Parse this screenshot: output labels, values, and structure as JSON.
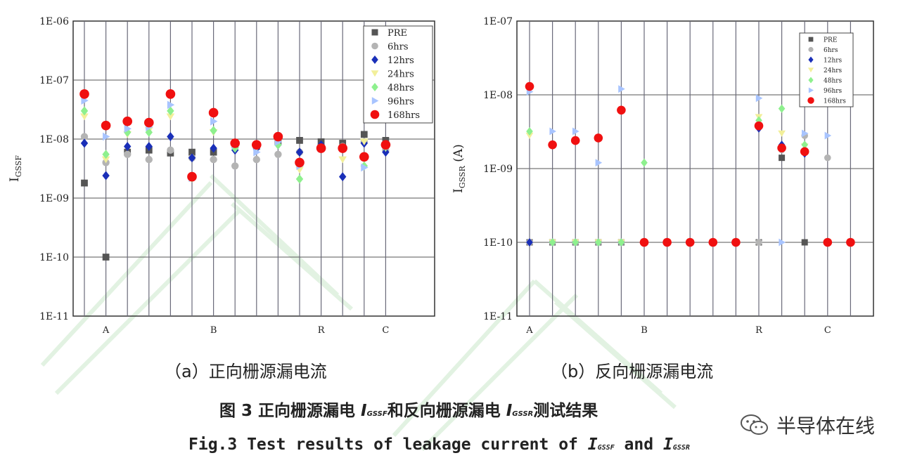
{
  "figure": {
    "caption_a": "（a）正向栅源漏电流",
    "caption_b": "（b）反向栅源漏电流",
    "title_cn_pre": "图 3  正向栅源漏电 ",
    "title_cn_sym1": "I",
    "title_cn_sub1": "GSSF",
    "title_cn_mid": "和反向栅源漏电 ",
    "title_cn_sym2": "I",
    "title_cn_sub2": "GSSR",
    "title_cn_post": "测试结果",
    "title_en_pre": "Fig.3 Test results of leakage current of ",
    "title_en_sym1": "I",
    "title_en_sub1": "GSSF",
    "title_en_mid": " and ",
    "title_en_sym2": "I",
    "title_en_sub2": "GSSR",
    "watermark": "半导体在线"
  },
  "colors": {
    "PRE": "#555555",
    "6hrs": "#b4b4b4",
    "12hrs": "#1a2fb8",
    "24hrs": "#f2ef9a",
    "48hrs": "#8ef08e",
    "96hrs": "#a8c4ff",
    "168hrs": "#f01010"
  },
  "chart_data": [
    {
      "type": "scatter",
      "title": "",
      "ylabel": "IGSSF",
      "ylabel_main": "I",
      "ylabel_sub": "GSSF",
      "yscale": "log",
      "ylim": [
        1e-11,
        1e-06
      ],
      "ytick_labels": [
        "1E-06",
        "1E-07",
        "1E-08",
        "1E-09",
        "1E-10",
        "1E-11"
      ],
      "x_category_labels": [
        {
          "label": "A",
          "at": 1
        },
        {
          "label": "B",
          "at": 6
        },
        {
          "label": "R",
          "at": 11
        },
        {
          "label": "C",
          "at": 14
        }
      ],
      "x_count": 15,
      "legend_position": "top-right",
      "series": [
        {
          "name": "PRE",
          "marker": "square",
          "values": [
            1.8e-09,
            1e-10,
            6e-09,
            6.5e-09,
            5.8e-09,
            6e-09,
            6e-09,
            8e-09,
            7.5e-09,
            9e-09,
            9.5e-09,
            9e-09,
            8.5e-09,
            1.2e-08,
            9.5e-09
          ]
        },
        {
          "name": "6hrs",
          "marker": "circle",
          "values": [
            1.1e-08,
            4e-09,
            5.5e-09,
            4.5e-09,
            6.5e-09,
            4.8e-09,
            4.5e-09,
            3.5e-09,
            4.5e-09,
            5.5e-09,
            6e-09,
            7e-09,
            7.5e-09,
            9e-09,
            6.5e-09
          ]
        },
        {
          "name": "12hrs",
          "marker": "diamond",
          "values": [
            8.5e-09,
            2.4e-09,
            7.5e-09,
            7.5e-09,
            1.1e-08,
            4.8e-09,
            7e-09,
            6.5e-09,
            7e-09,
            8e-09,
            6e-09,
            8e-09,
            2.3e-09,
            8.5e-09,
            6e-09
          ]
        },
        {
          "name": "24hrs",
          "marker": "triangle-down",
          "values": [
            2.4e-08,
            4.5e-09,
            1.2e-08,
            1.4e-08,
            2.4e-08,
            2.2e-09,
            1.3e-08,
            7e-09,
            7e-09,
            9e-09,
            3e-09,
            7e-09,
            4.5e-09,
            9e-09,
            7e-09
          ]
        },
        {
          "name": "48hrs",
          "marker": "diamond",
          "values": [
            3e-08,
            5.5e-09,
            1.3e-08,
            1.3e-08,
            3e-08,
            2.2e-09,
            1.4e-08,
            7e-09,
            8e-09,
            8e-09,
            2.1e-09,
            7e-09,
            7e-09,
            3.5e-09,
            7.5e-09
          ]
        },
        {
          "name": "96hrs",
          "marker": "triangle-right",
          "values": [
            4.5e-08,
            1.1e-08,
            1.5e-08,
            1.6e-08,
            3.8e-08,
            2.2e-09,
            2e-08,
            8e-09,
            6e-09,
            9e-09,
            3.5e-09,
            7e-09,
            7e-09,
            3.3e-09,
            8e-09
          ]
        },
        {
          "name": "168hrs",
          "marker": "circle-large",
          "values": [
            5.8e-08,
            1.7e-08,
            2e-08,
            1.9e-08,
            5.8e-08,
            2.3e-09,
            2.8e-08,
            8.5e-09,
            8e-09,
            1.1e-08,
            4e-09,
            7e-09,
            7e-09,
            5e-09,
            8e-09
          ]
        }
      ]
    },
    {
      "type": "scatter",
      "title": "",
      "ylabel": "IGSSR (A)",
      "ylabel_main": "I",
      "ylabel_sub": "GSSR",
      "ylabel_unit": " (A)",
      "yscale": "log",
      "ylim": [
        1e-11,
        1e-07
      ],
      "ytick_labels": [
        "1E-07",
        "1E-08",
        "1E-09",
        "1E-10",
        "1E-11"
      ],
      "x_category_labels": [
        {
          "label": "A",
          "at": 0
        },
        {
          "label": "B",
          "at": 5
        },
        {
          "label": "R",
          "at": 10
        },
        {
          "label": "C",
          "at": 13
        }
      ],
      "x_count": 15,
      "legend_position": "top-right",
      "series": [
        {
          "name": "PRE",
          "marker": "square",
          "values": [
            1e-10,
            1e-10,
            1e-10,
            1e-10,
            1e-10,
            1e-10,
            1e-10,
            1e-10,
            1e-10,
            1e-10,
            1e-10,
            1.4e-09,
            1e-10,
            1e-10,
            1e-10
          ]
        },
        {
          "name": "6hrs",
          "marker": "circle",
          "values": [
            1e-10,
            1e-10,
            1e-10,
            1e-10,
            1e-10,
            1e-10,
            1e-10,
            1e-10,
            1e-10,
            1e-10,
            1e-10,
            1.8e-09,
            2.8e-09,
            1.4e-09,
            1e-10
          ]
        },
        {
          "name": "12hrs",
          "marker": "diamond",
          "values": [
            1e-10,
            1e-10,
            1e-10,
            1e-10,
            1e-10,
            1e-10,
            1e-10,
            1e-10,
            1e-10,
            1e-10,
            3.5e-09,
            2.1e-09,
            1.6e-09,
            1e-10,
            1e-10
          ]
        },
        {
          "name": "24hrs",
          "marker": "triangle-down",
          "values": [
            2.8e-09,
            1e-10,
            1e-10,
            1e-10,
            1e-10,
            1e-10,
            1e-10,
            1e-10,
            1e-10,
            1e-10,
            5e-09,
            3e-09,
            2e-09,
            1e-10,
            1e-10
          ]
        },
        {
          "name": "48hrs",
          "marker": "diamond",
          "values": [
            3.2e-09,
            1e-10,
            1e-10,
            1e-10,
            1e-10,
            1.2e-09,
            1e-10,
            1e-10,
            1e-10,
            1e-10,
            4.5e-09,
            6.5e-09,
            2.1e-09,
            1e-10,
            1e-10
          ]
        },
        {
          "name": "96hrs",
          "marker": "triangle-right",
          "values": [
            1.1e-08,
            3.2e-09,
            3.2e-09,
            1.2e-09,
            1.2e-08,
            1e-10,
            1e-10,
            1e-10,
            1e-10,
            1e-10,
            9e-09,
            1e-10,
            3e-09,
            2.8e-09,
            1e-10
          ]
        },
        {
          "name": "168hrs",
          "marker": "circle-large",
          "values": [
            1.3e-08,
            2.1e-09,
            2.4e-09,
            2.6e-09,
            6.2e-09,
            1e-10,
            1e-10,
            1e-10,
            1e-10,
            1e-10,
            3.8e-09,
            1.9e-09,
            1.7e-09,
            1e-10,
            1e-10
          ]
        }
      ]
    }
  ]
}
